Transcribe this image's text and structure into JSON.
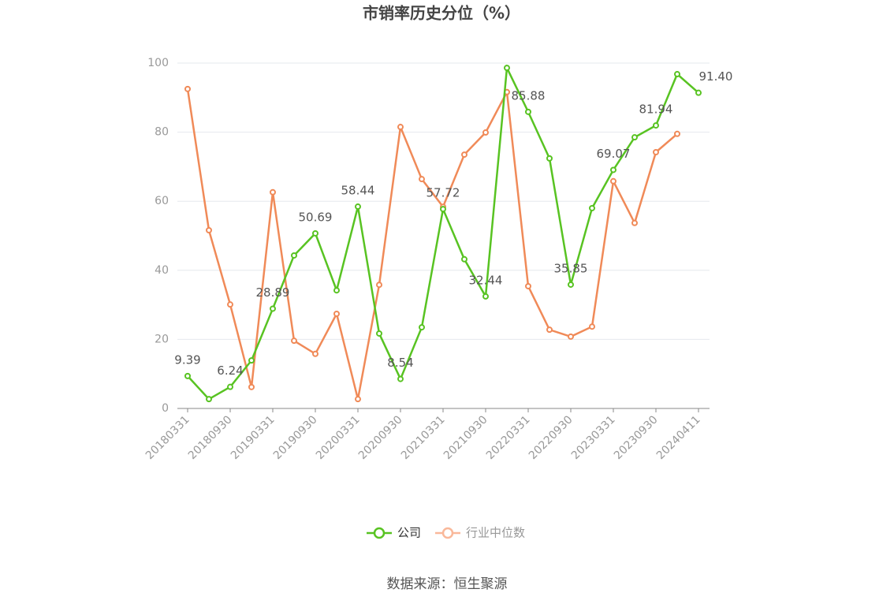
{
  "chart_data": {
    "type": "line",
    "title": "市销率历史分位（%）",
    "categories": [
      "20180331",
      null,
      "20180930",
      null,
      "20190331",
      null,
      "20190930",
      null,
      "20200331",
      null,
      "20200930",
      null,
      "20210331",
      null,
      "20210930",
      null,
      "20220331",
      null,
      "20220930",
      null,
      "20230331",
      null,
      "20230930",
      null,
      "20240411"
    ],
    "series": [
      {
        "name": "公司",
        "color": "#58c322",
        "values": [
          9.39,
          2.7,
          6.24,
          13.9,
          28.89,
          44.3,
          50.69,
          34.2,
          58.44,
          21.7,
          8.54,
          23.5,
          57.72,
          43.2,
          32.44,
          98.6,
          85.88,
          72.4,
          35.85,
          58.0,
          69.07,
          78.5,
          81.94,
          96.8,
          91.4
        ],
        "value_labels": [
          "9.39",
          null,
          "6.24",
          null,
          "28.89",
          null,
          "50.69",
          null,
          "58.44",
          null,
          "8.54",
          null,
          "57.72",
          null,
          "32.44",
          null,
          "85.88",
          null,
          "35.85",
          null,
          "69.07",
          null,
          "81.94",
          null,
          "91.40"
        ]
      },
      {
        "name": "行业中位数",
        "color": "#f08a58",
        "values": [
          92.5,
          51.6,
          30.1,
          6.2,
          62.6,
          19.6,
          15.8,
          27.4,
          2.7,
          35.8,
          81.5,
          66.4,
          58.4,
          73.5,
          79.9,
          91.6,
          35.4,
          22.8,
          20.8,
          23.7,
          65.8,
          53.7,
          74.2,
          79.5,
          null
        ]
      }
    ],
    "ylim": [
      0,
      100
    ],
    "yticks": [
      0,
      20,
      40,
      60,
      80,
      100
    ],
    "grid": true,
    "legend": "bottom",
    "source": "数据来源：恒生聚源"
  }
}
